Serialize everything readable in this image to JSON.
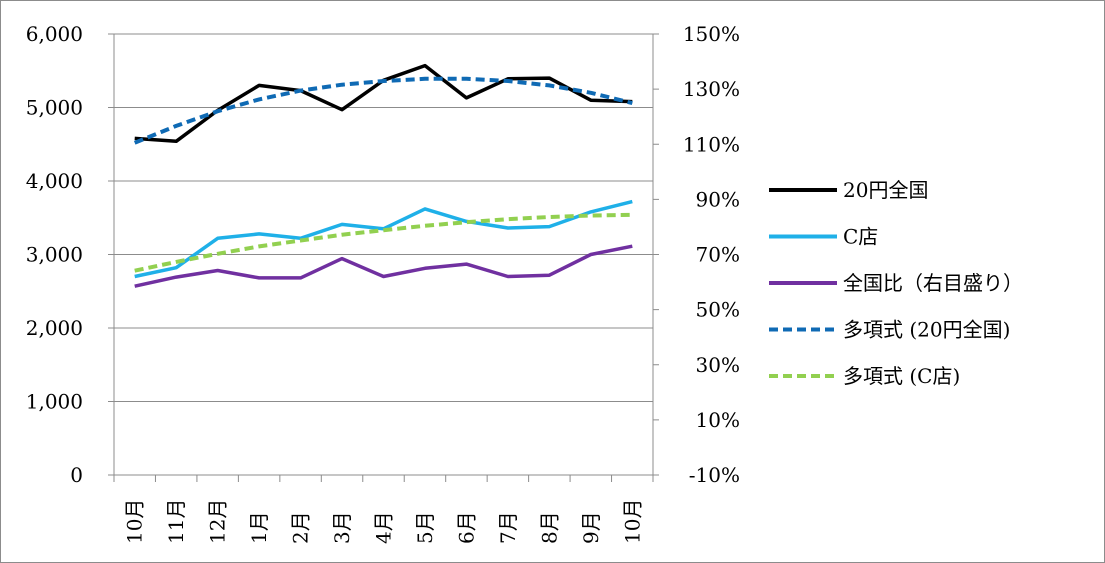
{
  "chart_data": {
    "type": "line",
    "categories": [
      "10月",
      "11月",
      "12月",
      "1月",
      "2月",
      "3月",
      "4月",
      "5月",
      "6月",
      "7月",
      "8月",
      "9月",
      "10月"
    ],
    "y_left": {
      "min": 0,
      "max": 6000,
      "ticks": [
        "0",
        "1,000",
        "2,000",
        "3,000",
        "4,000",
        "5,000",
        "6,000"
      ]
    },
    "y_right": {
      "min": -10,
      "max": 150,
      "ticks": [
        "-10%",
        "10%",
        "30%",
        "50%",
        "70%",
        "90%",
        "110%",
        "130%",
        "150%"
      ]
    },
    "grid": "horizontal",
    "legend_position": "right",
    "series": [
      {
        "name": "20円全国",
        "axis": "left",
        "color": "#000000",
        "style": "solid",
        "values": [
          4580,
          4540,
          4960,
          5300,
          5230,
          4970,
          5370,
          5570,
          5130,
          5390,
          5400,
          5100,
          5080
        ]
      },
      {
        "name": "C店",
        "axis": "left",
        "color": "#1fb0e8",
        "style": "solid",
        "values": [
          2700,
          2820,
          3220,
          3280,
          3220,
          3410,
          3350,
          3620,
          3450,
          3360,
          3380,
          3580,
          3720
        ]
      },
      {
        "name": "全国比（右目盛り）",
        "axis": "right",
        "color": "#7030a0",
        "style": "solid",
        "values": [
          58.5,
          61.8,
          64.2,
          61.5,
          61.5,
          68.5,
          62.0,
          65.0,
          66.5,
          62.0,
          62.5,
          70.0,
          73.0
        ]
      },
      {
        "name": "多項式 (20円全国)",
        "axis": "left",
        "color": "#0f6ab4",
        "style": "dashed",
        "values": [
          4520,
          4750,
          4950,
          5110,
          5230,
          5310,
          5360,
          5390,
          5390,
          5360,
          5300,
          5200,
          5060
        ]
      },
      {
        "name": "多項式 (C店)",
        "axis": "left",
        "color": "#92d050",
        "style": "dashed",
        "values": [
          2780,
          2900,
          3010,
          3110,
          3190,
          3270,
          3330,
          3390,
          3440,
          3480,
          3510,
          3530,
          3540
        ]
      }
    ]
  }
}
